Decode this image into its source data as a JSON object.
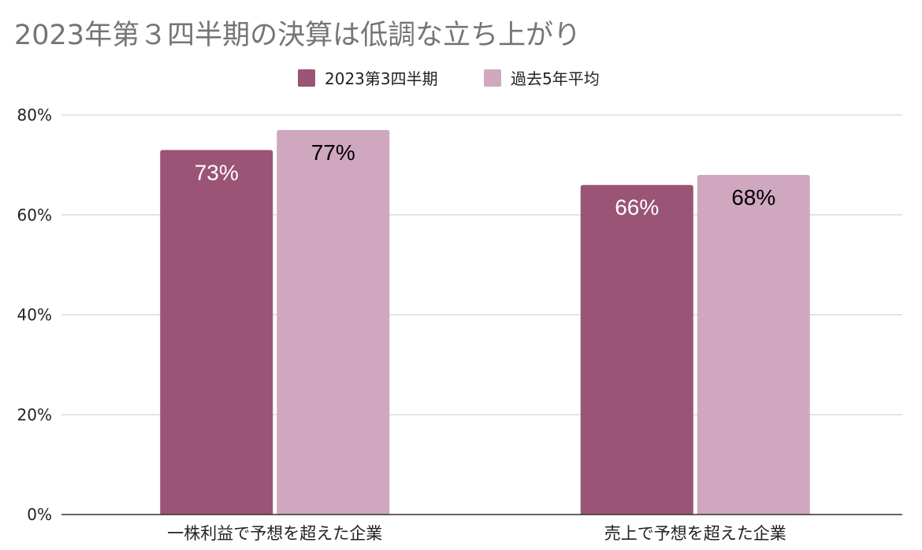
{
  "chart_data": {
    "type": "bar",
    "title": "2023年第３四半期の決算は低調な立ち上がり",
    "categories": [
      "一株利益で予想を超えた企業",
      "売上で予想を超えた企業"
    ],
    "series": [
      {
        "name": "2023第3四半期",
        "values": [
          73,
          66
        ],
        "color": "#9a5475",
        "label_color": "#ffffff"
      },
      {
        "name": "過去5年平均",
        "values": [
          77,
          68
        ],
        "color": "#cfa8bf",
        "label_color": "#000000"
      }
    ],
    "data_labels": [
      [
        "73%",
        "66%"
      ],
      [
        "77%",
        "68%"
      ]
    ],
    "y_ticks": [
      "0%",
      "20%",
      "40%",
      "60%",
      "80%"
    ],
    "y_tick_values": [
      0,
      20,
      40,
      60,
      80
    ],
    "ylim": [
      0,
      80
    ],
    "grid": true,
    "legend_position": "top-center",
    "xlabel": "",
    "ylabel": ""
  },
  "colors": {
    "title": "#757575",
    "grid": "#cccccc",
    "axis": "#333333"
  }
}
